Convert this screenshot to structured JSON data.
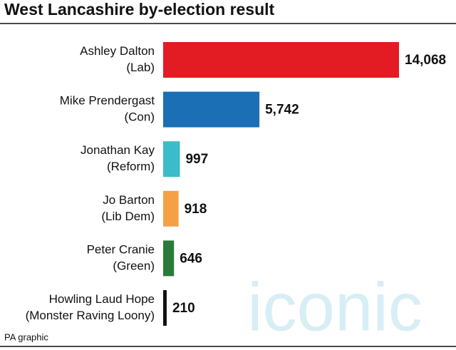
{
  "chart_data": {
    "type": "bar",
    "orientation": "horizontal",
    "title": "West Lancashire by-election result",
    "categories": [
      [
        "Ashley Dalton",
        "(Lab)"
      ],
      [
        "Mike Prendergast",
        "(Con)"
      ],
      [
        "Jonathan Kay",
        "(Reform)"
      ],
      [
        "Jo Barton",
        "(Lib Dem)"
      ],
      [
        "Peter Cranie",
        "(Green)"
      ],
      [
        "Howling Laud Hope",
        "(Monster Raving Loony)"
      ]
    ],
    "values": [
      14068,
      5742,
      997,
      918,
      646,
      210
    ],
    "value_labels": [
      "14,068",
      "5,742",
      "997",
      "918",
      "646",
      "210"
    ],
    "colors": [
      "#e31b23",
      "#1a6fb5",
      "#3cbcc8",
      "#f5a046",
      "#2a7a3a",
      "#111111"
    ],
    "source": "PA graphic",
    "watermark": "iconic"
  }
}
